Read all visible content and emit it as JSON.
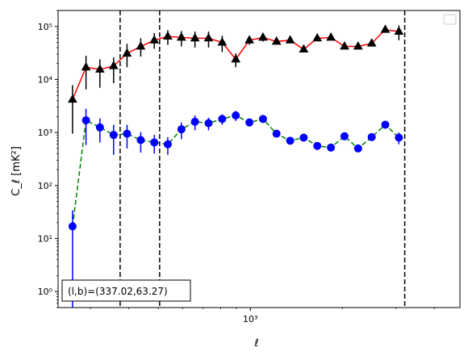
{
  "chart_data": {
    "type": "scatter",
    "xlabel": "ℓ",
    "ylabel": "C_ℓ [mK²]",
    "xscale": "log",
    "yscale": "log",
    "xlim": [
      235,
      4850
    ],
    "ylim": [
      0.5,
      200000
    ],
    "x_ticks": [
      {
        "value": 1000,
        "label": "10³"
      }
    ],
    "y_ticks": [
      {
        "value": 1,
        "label": "10⁰"
      },
      {
        "value": 10,
        "label": "10¹"
      },
      {
        "value": 100,
        "label": "10²"
      },
      {
        "value": 1000,
        "label": "10³"
      },
      {
        "value": 10000,
        "label": "10⁴"
      },
      {
        "value": 100000,
        "label": "10⁵"
      }
    ],
    "annotation": "(l,b)=(337.02,63.27)",
    "legend": {
      "location": "top-right",
      "entries": []
    },
    "vlines": [
      375,
      505,
      3200
    ],
    "series": [
      {
        "marker": "triangle",
        "color": "#000000",
        "line_color": "#ff0000",
        "line_style": "solid",
        "points": [
          {
            "x": 262,
            "y": 4200,
            "lo": 950,
            "hi": 7800
          },
          {
            "x": 290,
            "y": 17000,
            "lo": 6500,
            "hi": 28000
          },
          {
            "x": 322,
            "y": 15500,
            "lo": 7000,
            "hi": 24000
          },
          {
            "x": 357,
            "y": 18000,
            "lo": 8500,
            "hi": 26000
          },
          {
            "x": 395,
            "y": 31000,
            "lo": 17000,
            "hi": 47000
          },
          {
            "x": 438,
            "y": 42000,
            "lo": 27000,
            "hi": 60000
          },
          {
            "x": 485,
            "y": 55000,
            "lo": 38000,
            "hi": 75000
          },
          {
            "x": 537,
            "y": 65000,
            "lo": 45000,
            "hi": 85000
          },
          {
            "x": 595,
            "y": 62000,
            "lo": 42000,
            "hi": 82000
          },
          {
            "x": 659,
            "y": 60000,
            "lo": 40000,
            "hi": 80000
          },
          {
            "x": 730,
            "y": 60000,
            "lo": 40000,
            "hi": 80000
          },
          {
            "x": 809,
            "y": 50000,
            "lo": 33000,
            "hi": 67000
          },
          {
            "x": 896,
            "y": 24000,
            "lo": 17000,
            "hi": 31000
          },
          {
            "x": 993,
            "y": 55000,
            "lo": 45000,
            "hi": 66000
          },
          {
            "x": 1100,
            "y": 62000,
            "lo": 52000,
            "hi": 72000
          },
          {
            "x": 1218,
            "y": 52000,
            "lo": 46000,
            "hi": 59000
          },
          {
            "x": 1350,
            "y": 55000,
            "lo": 49000,
            "hi": 62000
          },
          {
            "x": 1495,
            "y": 37000,
            "lo": 33000,
            "hi": 42000
          },
          {
            "x": 1656,
            "y": 60000,
            "lo": 55000,
            "hi": 66000
          },
          {
            "x": 1835,
            "y": 62000,
            "lo": 57000,
            "hi": 68000
          },
          {
            "x": 2033,
            "y": 42000,
            "lo": 38000,
            "hi": 46000
          },
          {
            "x": 2252,
            "y": 42000,
            "lo": 38000,
            "hi": 46000
          },
          {
            "x": 2495,
            "y": 48000,
            "lo": 43000,
            "hi": 53000
          },
          {
            "x": 2764,
            "y": 87000,
            "lo": 80000,
            "hi": 95000
          },
          {
            "x": 3062,
            "y": 80000,
            "lo": 55000,
            "hi": 105000
          }
        ]
      },
      {
        "marker": "circle",
        "color": "#0000ff",
        "line_color": "#008000",
        "line_style": "dashed",
        "points": [
          {
            "x": 262,
            "y": 17,
            "lo": 0.45,
            "hi": 34
          },
          {
            "x": 290,
            "y": 1700,
            "lo": 580,
            "hi": 2800
          },
          {
            "x": 322,
            "y": 1250,
            "lo": 650,
            "hi": 1850
          },
          {
            "x": 357,
            "y": 900,
            "lo": 380,
            "hi": 1400
          },
          {
            "x": 395,
            "y": 950,
            "lo": 500,
            "hi": 1400
          },
          {
            "x": 438,
            "y": 720,
            "lo": 420,
            "hi": 1020
          },
          {
            "x": 485,
            "y": 650,
            "lo": 400,
            "hi": 900
          },
          {
            "x": 537,
            "y": 600,
            "lo": 380,
            "hi": 820
          },
          {
            "x": 595,
            "y": 1150,
            "lo": 750,
            "hi": 1550
          },
          {
            "x": 659,
            "y": 1600,
            "lo": 1100,
            "hi": 2100
          },
          {
            "x": 730,
            "y": 1500,
            "lo": 1100,
            "hi": 1900
          },
          {
            "x": 809,
            "y": 1800,
            "lo": 1400,
            "hi": 2200
          },
          {
            "x": 896,
            "y": 2100,
            "lo": 1650,
            "hi": 2550
          },
          {
            "x": 993,
            "y": 1550,
            "lo": 1300,
            "hi": 1800
          },
          {
            "x": 1100,
            "y": 1800,
            "lo": 1550,
            "hi": 2050
          },
          {
            "x": 1218,
            "y": 950,
            "lo": 850,
            "hi": 1050
          },
          {
            "x": 1350,
            "y": 700,
            "lo": 620,
            "hi": 780
          },
          {
            "x": 1495,
            "y": 800,
            "lo": 720,
            "hi": 880
          },
          {
            "x": 1656,
            "y": 560,
            "lo": 510,
            "hi": 610
          },
          {
            "x": 1835,
            "y": 520,
            "lo": 470,
            "hi": 570
          },
          {
            "x": 2033,
            "y": 850,
            "lo": 780,
            "hi": 920
          },
          {
            "x": 2252,
            "y": 500,
            "lo": 455,
            "hi": 545
          },
          {
            "x": 2495,
            "y": 820,
            "lo": 750,
            "hi": 890
          },
          {
            "x": 2764,
            "y": 1400,
            "lo": 1200,
            "hi": 1650
          },
          {
            "x": 3062,
            "y": 800,
            "lo": 600,
            "hi": 1000
          }
        ]
      }
    ]
  }
}
